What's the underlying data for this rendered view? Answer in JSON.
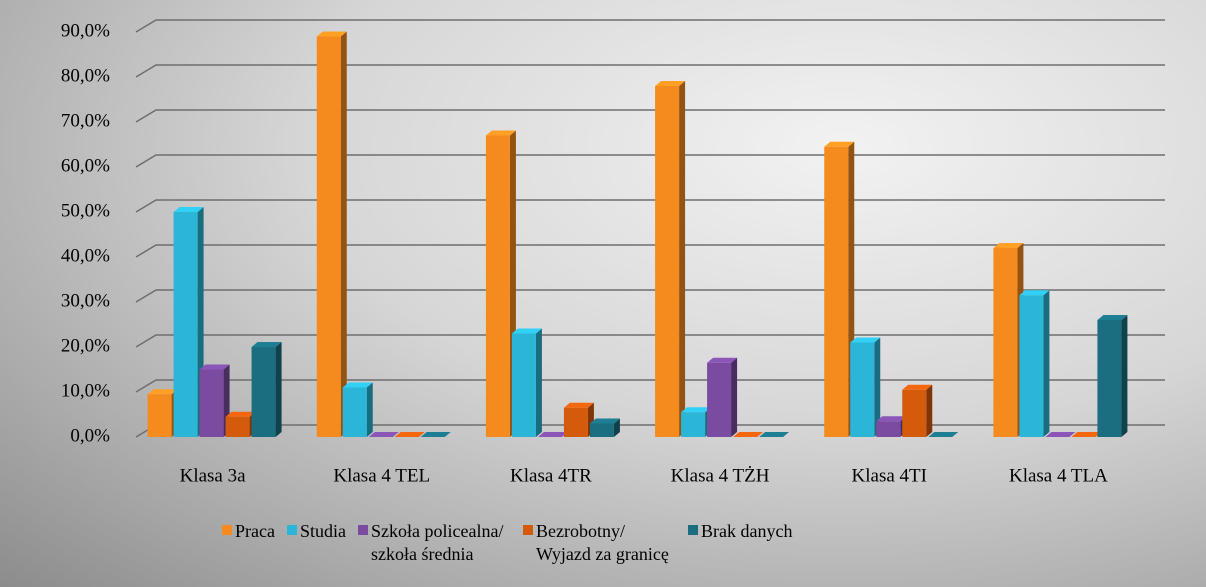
{
  "chart_data": {
    "type": "bar3d",
    "categories": [
      "Klasa 3a",
      "Klasa 4 TEL",
      "Klasa 4TR",
      "Klasa 4 TŻH",
      "Klasa 4TI",
      "Klasa 4 TLA"
    ],
    "series": [
      {
        "name": "Praca",
        "color": "#f58a1f",
        "values": [
          9.5,
          89,
          67,
          78,
          64.5,
          42
        ]
      },
      {
        "name": "Studia",
        "color": "#2bb5d6",
        "values": [
          50,
          11,
          23,
          5.5,
          21,
          31.5
        ]
      },
      {
        "name": "Szkoła policealna/ szkoła średnia",
        "color": "#7a4ba0",
        "values": [
          15,
          0,
          0,
          16.5,
          3.5,
          0
        ]
      },
      {
        "name": "Bezrobotny/ Wyjazd za granicę",
        "color": "#d45a0c",
        "values": [
          4.5,
          0,
          6.5,
          0,
          10.5,
          0
        ]
      },
      {
        "name": "Brak danych",
        "color": "#1a6e80",
        "values": [
          20,
          0,
          3,
          0,
          0,
          26
        ]
      }
    ],
    "ylim": [
      0,
      90
    ],
    "yticks": [
      {
        "value": 0,
        "label": "0,0%"
      },
      {
        "value": 10,
        "label": "10,0%"
      },
      {
        "value": 20,
        "label": "20,0%"
      },
      {
        "value": 30,
        "label": "30,0%"
      },
      {
        "value": 40,
        "label": "40,0%"
      },
      {
        "value": 50,
        "label": "50,0%"
      },
      {
        "value": 60,
        "label": "60,0%"
      },
      {
        "value": 70,
        "label": "70,0%"
      },
      {
        "value": 80,
        "label": "80,0%"
      },
      {
        "value": 90,
        "label": "90,0%"
      }
    ],
    "grid": true
  }
}
